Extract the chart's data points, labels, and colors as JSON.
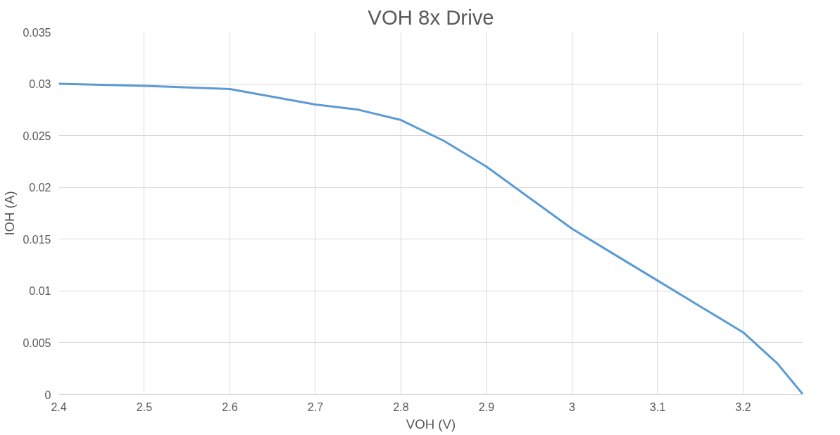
{
  "chart_data": {
    "type": "line",
    "title": "VOH 8x Drive",
    "xlabel": "VOH (V)",
    "ylabel": "IOH (A)",
    "series": [
      {
        "color": "#5b9bd5",
        "x": [
          2.4,
          2.5,
          2.6,
          2.7,
          2.75,
          2.8,
          2.85,
          2.9,
          2.95,
          3,
          3.05,
          3.1,
          3.15,
          3.2,
          3.24,
          3.27
        ],
        "values": [
          0.03,
          0.0298,
          0.0295,
          0.028,
          0.0275,
          0.0265,
          0.0245,
          0.022,
          0.019,
          0.016,
          0.0135,
          0.011,
          0.0085,
          0.006,
          0.003,
          0
        ]
      }
    ],
    "xlim": [
      2.4,
      3.27
    ],
    "ylim": [
      0,
      0.035
    ],
    "xticks": [
      2.4,
      2.5,
      2.6,
      2.7,
      2.8,
      2.9,
      3,
      3.1,
      3.2
    ],
    "yticks": [
      0,
      0.005,
      0.01,
      0.015,
      0.02,
      0.025,
      0.03,
      0.035
    ],
    "grid": true,
    "marker": "none",
    "line_style": "solid"
  }
}
